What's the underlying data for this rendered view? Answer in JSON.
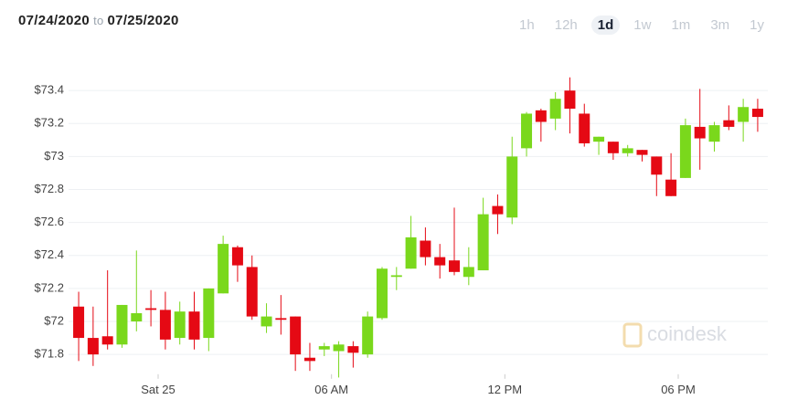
{
  "header": {
    "from": "07/24/2020",
    "separator": "to",
    "to": "07/25/2020"
  },
  "range_buttons": [
    "1h",
    "12h",
    "1d",
    "1w",
    "1m",
    "3m",
    "1y"
  ],
  "selected_range": "1d",
  "watermark": "coindesk",
  "chart_data": {
    "type": "candlestick",
    "up_color": "#7ad81c",
    "down_color": "#e50914",
    "grid": true,
    "xlim": [
      -3.1,
      21.1
    ],
    "xticks": [
      {
        "value": 0,
        "label": "Sat 25"
      },
      {
        "value": 6,
        "label": "06 AM"
      },
      {
        "value": 12,
        "label": "12 PM"
      },
      {
        "value": 18,
        "label": "06 PM"
      }
    ],
    "ylim": [
      71.68,
      73.52
    ],
    "yticks": [
      {
        "value": 71.8,
        "label": "$71.8"
      },
      {
        "value": 72,
        "label": "$72"
      },
      {
        "value": 72.2,
        "label": "$72.2"
      },
      {
        "value": 72.4,
        "label": "$72.4"
      },
      {
        "value": 72.6,
        "label": "$72.6"
      },
      {
        "value": 72.8,
        "label": "$72.8"
      },
      {
        "value": 73,
        "label": "$73"
      },
      {
        "value": 73.2,
        "label": "$73.2"
      },
      {
        "value": 73.4,
        "label": "$73.4"
      }
    ],
    "x": [
      -2.75,
      -2.25,
      -1.75,
      -1.25,
      -0.75,
      -0.25,
      0.25,
      0.75,
      1.25,
      1.75,
      2.25,
      2.75,
      3.25,
      3.75,
      4.25,
      4.75,
      5.25,
      5.75,
      6.25,
      6.75,
      7.25,
      7.75,
      8.25,
      8.75,
      9.25,
      9.75,
      10.25,
      10.75,
      11.25,
      11.75,
      12.25,
      12.75,
      13.25,
      13.75,
      14.25,
      14.75,
      15.25,
      15.75,
      16.25,
      16.75,
      17.25,
      17.75,
      18.25,
      18.75,
      19.25,
      19.75,
      20.25,
      20.75
    ],
    "open": [
      72.09,
      71.9,
      71.91,
      71.86,
      72.0,
      72.08,
      72.07,
      71.9,
      72.06,
      71.9,
      72.17,
      72.45,
      72.33,
      71.97,
      72.02,
      72.03,
      71.78,
      71.83,
      71.82,
      71.85,
      71.8,
      72.02,
      72.27,
      72.32,
      72.49,
      72.39,
      72.37,
      72.27,
      72.31,
      72.7,
      72.63,
      73.05,
      73.28,
      73.23,
      73.4,
      73.26,
      73.09,
      73.09,
      73.02,
      73.04,
      73.0,
      72.86,
      72.87,
      73.18,
      73.09,
      73.22,
      73.21,
      73.29
    ],
    "high": [
      72.18,
      72.09,
      72.31,
      72.1,
      72.43,
      72.19,
      72.18,
      72.12,
      72.18,
      72.2,
      72.52,
      72.46,
      72.4,
      72.11,
      72.16,
      72.03,
      71.87,
      71.87,
      71.88,
      71.88,
      72.06,
      72.33,
      72.33,
      72.64,
      72.57,
      72.47,
      72.69,
      72.45,
      72.75,
      72.77,
      73.12,
      73.27,
      73.29,
      73.39,
      73.48,
      73.32,
      73.12,
      73.09,
      73.07,
      73.04,
      73.0,
      73.02,
      73.23,
      73.41,
      73.21,
      73.31,
      73.35,
      73.35
    ],
    "low": [
      71.76,
      71.73,
      71.83,
      71.84,
      71.94,
      71.97,
      71.83,
      71.86,
      71.83,
      71.82,
      72.17,
      72.24,
      72.01,
      71.93,
      71.92,
      71.7,
      71.7,
      71.79,
      71.66,
      71.72,
      71.78,
      72.01,
      72.19,
      72.32,
      72.34,
      72.26,
      72.28,
      72.22,
      72.31,
      72.53,
      72.59,
      73.0,
      73.09,
      73.16,
      73.14,
      73.06,
      73.01,
      72.98,
      73.0,
      72.97,
      72.76,
      72.76,
      72.87,
      72.92,
      73.03,
      73.16,
      73.09,
      73.15
    ],
    "close": [
      71.9,
      71.8,
      71.86,
      72.1,
      72.05,
      72.07,
      71.89,
      72.06,
      71.89,
      72.2,
      72.47,
      72.34,
      72.03,
      72.03,
      72.01,
      71.8,
      71.76,
      71.85,
      71.86,
      71.81,
      72.03,
      72.32,
      72.28,
      72.51,
      72.39,
      72.34,
      72.3,
      72.33,
      72.65,
      72.65,
      73.0,
      73.26,
      73.21,
      73.35,
      73.29,
      73.08,
      73.12,
      73.02,
      73.05,
      73.01,
      72.89,
      72.76,
      73.19,
      73.11,
      73.19,
      73.18,
      73.3,
      73.24
    ]
  }
}
